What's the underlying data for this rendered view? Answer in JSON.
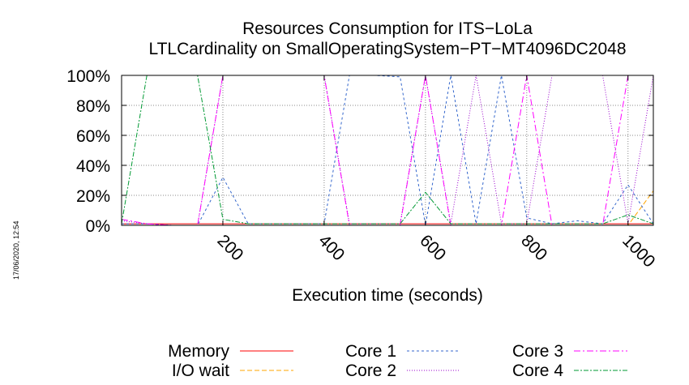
{
  "timestamp": "17/06/2020, 12:54",
  "chart_data": {
    "type": "line",
    "title": "Resources Consumption for ITS−LoLa",
    "subtitle": "LTLCardinality on SmallOperatingSystem−PT−MT4096DC2048",
    "xlabel": "Execution time (seconds)",
    "ylabel": "",
    "xlim": [
      0,
      1050
    ],
    "ylim": [
      0,
      100
    ],
    "xticks": [
      200,
      400,
      600,
      800,
      1000
    ],
    "xtick_labels": [
      "200",
      "400",
      "600",
      "800",
      "1000"
    ],
    "yticks": [
      0,
      20,
      40,
      60,
      80,
      100
    ],
    "ytick_labels": [
      "0%",
      "20%",
      "40%",
      "60%",
      "80%",
      "100%"
    ],
    "grid": true,
    "legend_position": "bottom",
    "series": [
      {
        "name": "Memory",
        "color": "#ff0000",
        "dash": "none",
        "x": [
          0,
          50,
          100,
          150,
          200,
          250,
          300,
          350,
          400,
          450,
          500,
          550,
          600,
          650,
          700,
          750,
          800,
          850,
          900,
          950,
          1000,
          1050
        ],
        "y": [
          1,
          1,
          1,
          1,
          1,
          1,
          1,
          1,
          1,
          1,
          1,
          1,
          1,
          1,
          1,
          1,
          1,
          1,
          1,
          1,
          1,
          1
        ]
      },
      {
        "name": "I/O wait",
        "color": "#ffa500",
        "dash": "6,3",
        "x": [
          0,
          950,
          1000,
          1050
        ],
        "y": [
          0,
          0,
          0,
          23
        ]
      },
      {
        "name": "Core 1",
        "color": "#3366cc",
        "dash": "3,3",
        "x": [
          0,
          50,
          100,
          150,
          200,
          250,
          300,
          350,
          400,
          450,
          500,
          550,
          600,
          650,
          700,
          750,
          800,
          850,
          900,
          950,
          1000,
          1050
        ],
        "y": [
          1,
          1,
          0,
          0,
          32,
          1,
          1,
          1,
          1,
          100,
          100,
          99,
          0,
          100,
          1,
          100,
          5,
          1,
          3,
          1,
          27,
          1
        ]
      },
      {
        "name": "Core 2",
        "color": "#9900cc",
        "dash": "1,2",
        "x": [
          0,
          50,
          100,
          150,
          200,
          250,
          300,
          350,
          400,
          450,
          500,
          550,
          600,
          650,
          700,
          750,
          800,
          850,
          900,
          950,
          1000,
          1050
        ],
        "y": [
          3,
          1,
          0,
          0,
          100,
          100,
          100,
          100,
          100,
          1,
          1,
          1,
          100,
          1,
          100,
          1,
          1,
          100,
          100,
          100,
          1,
          100
        ]
      },
      {
        "name": "Core 3",
        "color": "#ff00ff",
        "dash": "8,3,2,3",
        "x": [
          0,
          50,
          100,
          150,
          200,
          250,
          300,
          350,
          400,
          450,
          500,
          550,
          600,
          650,
          700,
          750,
          800,
          850,
          900,
          950,
          1000,
          1050
        ],
        "y": [
          4,
          1,
          0,
          0,
          100,
          100,
          100,
          100,
          100,
          0,
          0,
          0,
          100,
          0,
          0,
          0,
          100,
          0,
          0,
          0,
          100,
          100
        ]
      },
      {
        "name": "Core 4",
        "color": "#009933",
        "dash": "6,2,2,2",
        "x": [
          0,
          50,
          100,
          150,
          200,
          250,
          300,
          350,
          400,
          450,
          500,
          550,
          600,
          650,
          700,
          750,
          800,
          850,
          900,
          950,
          1000,
          1050
        ],
        "y": [
          1,
          100,
          100,
          100,
          4,
          1,
          1,
          1,
          1,
          1,
          1,
          1,
          22,
          1,
          1,
          1,
          1,
          1,
          1,
          1,
          7,
          1
        ]
      }
    ]
  }
}
